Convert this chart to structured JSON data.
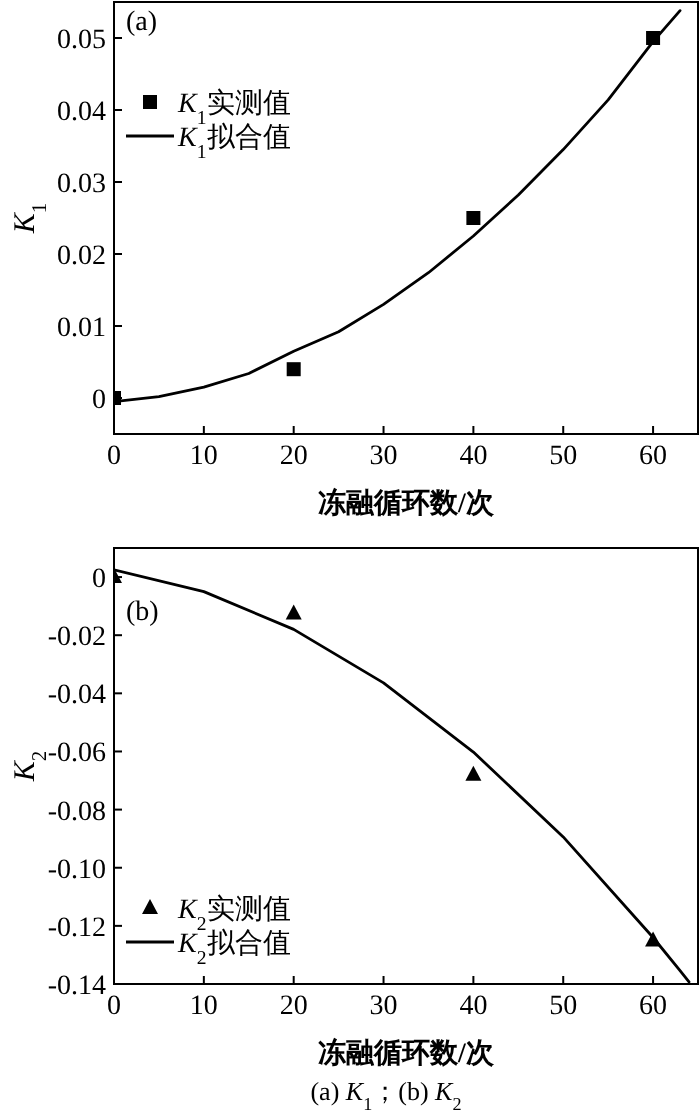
{
  "chart_data": [
    {
      "type": "scatter",
      "xlabel": "冻融循环数/次",
      "ylabel": "*K*$_{1}$",
      "annotations": [
        "(a)"
      ],
      "legend": "top left",
      "grid": false,
      "xlim": [
        0,
        65
      ],
      "ylim": [
        -0.005,
        0.055
      ],
      "xticks": [
        0,
        10,
        20,
        30,
        40,
        50,
        60
      ],
      "yticks": [
        0,
        0.01,
        0.02,
        0.03,
        0.04,
        0.05
      ],
      "series": [
        {
          "name": "*K*$_{1}$实测值",
          "marker": "square",
          "color": "#000000",
          "x": [
            0,
            20,
            40,
            60
          ],
          "values": [
            0,
            0.004,
            0.025,
            0.05
          ]
        },
        {
          "name": "*K*$_{1}$拟合值",
          "type": "line",
          "marker": "none",
          "line_style": "solid",
          "color": "#000000",
          "x": [
            0,
            5,
            10,
            15,
            20,
            25,
            30,
            35,
            40,
            45,
            50,
            55,
            60,
            63
          ],
          "values": [
            -0.0005,
            0.0002,
            0.0015,
            0.0034,
            0.0065,
            0.0092,
            0.013,
            0.0174,
            0.0225,
            0.0282,
            0.0345,
            0.0414,
            0.0495,
            0.0538
          ]
        }
      ]
    },
    {
      "type": "scatter",
      "xlabel": "冻融循环数/次",
      "ylabel": "*K*$_{2}$",
      "annotations": [
        "(b)",
        "(a) *K*$_{1}$；(b) *K*$_{2}$"
      ],
      "legend": "bottom left",
      "grid": false,
      "xlim": [
        0,
        65
      ],
      "ylim": [
        -0.14,
        0.01
      ],
      "xticks": [
        0,
        10,
        20,
        30,
        40,
        50,
        60
      ],
      "yticks": [
        0,
        -0.02,
        -0.04,
        -0.06,
        -0.08,
        {
          "value": -0.1,
          "label": "-0.10"
        },
        -0.12,
        -0.14
      ],
      "series": [
        {
          "name": "*K*$_{2}$实测值",
          "marker": "triangle",
          "color": "#000000",
          "x": [
            0,
            20,
            40,
            60
          ],
          "values": [
            0,
            -0.0125,
            -0.068,
            -0.125
          ]
        },
        {
          "name": "*K*$_{2}$拟合值",
          "type": "line",
          "marker": "none",
          "line_style": "solid",
          "color": "#000000",
          "x": [
            0,
            10,
            20,
            30,
            40,
            50,
            60,
            63,
            64
          ],
          "values": [
            0.0025,
            -0.005,
            -0.018,
            -0.0364,
            -0.0602,
            -0.0894,
            -0.124,
            -0.1354,
            -0.1393
          ]
        }
      ]
    }
  ]
}
